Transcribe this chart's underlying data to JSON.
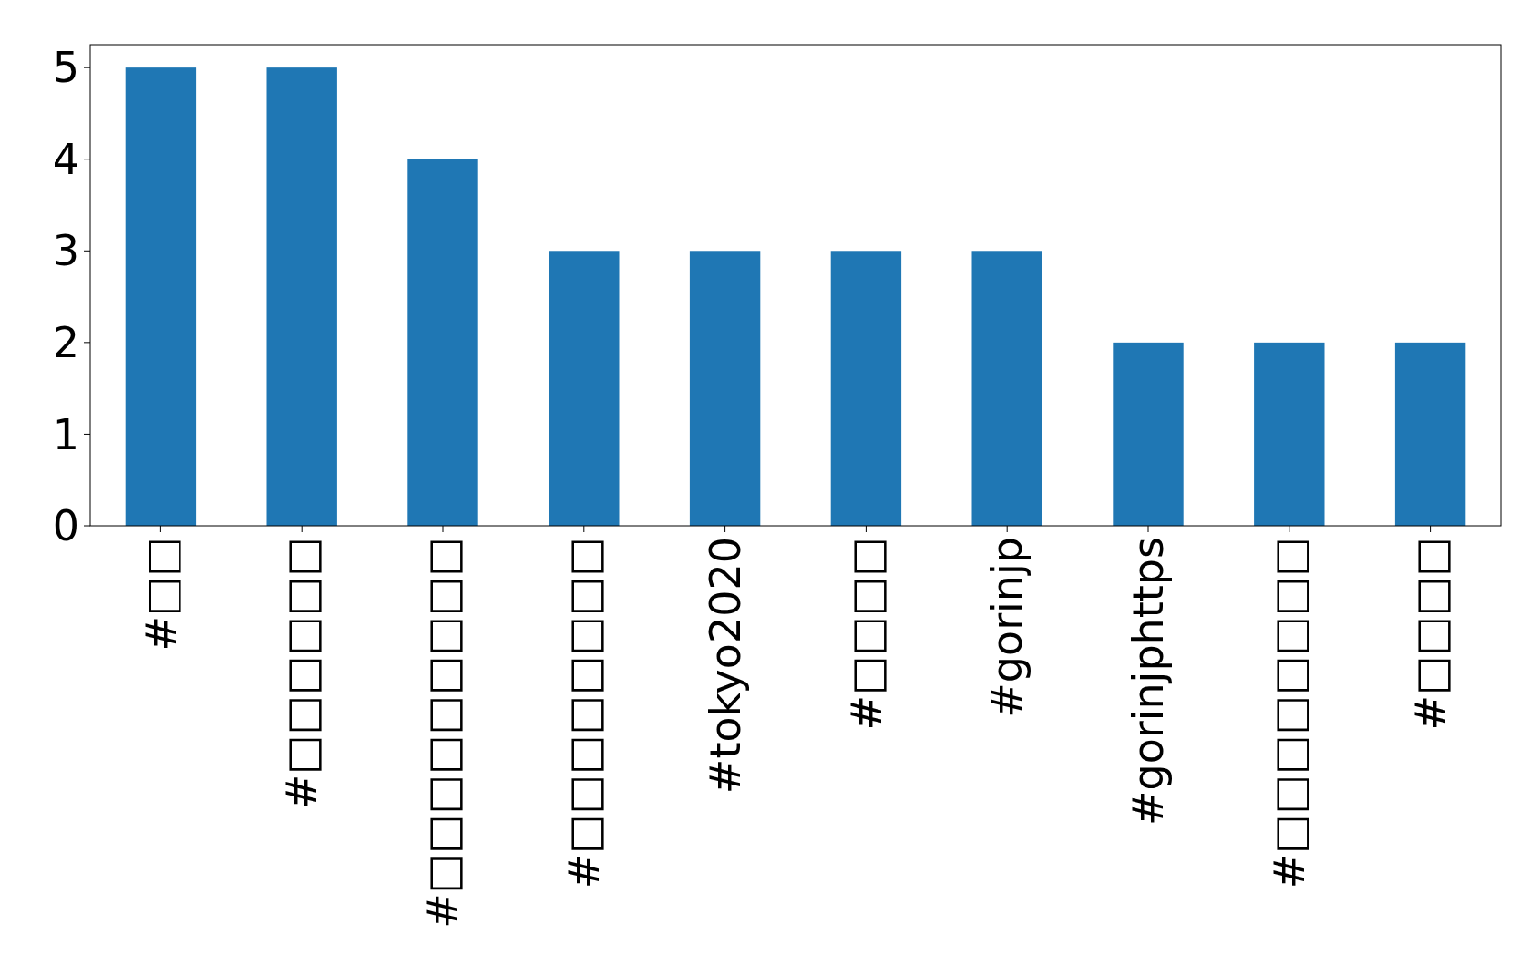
{
  "chart_data": {
    "type": "bar",
    "categories": [
      "#□□",
      "#□□□□□□",
      "#□□□□□□□□□",
      "#□□□□□□□□",
      "#tokyo2020",
      "#□□□□",
      "#gorinjp",
      "#gorinjphttps",
      "#□□□□□□□□",
      "#□□□□"
    ],
    "values": [
      5,
      5,
      4,
      3,
      3,
      3,
      3,
      2,
      2,
      2
    ],
    "color": "#1f77b4",
    "ylim": [
      0,
      5.25
    ],
    "yticks": [
      0,
      1,
      2,
      3,
      4,
      5
    ],
    "grid": false
  }
}
